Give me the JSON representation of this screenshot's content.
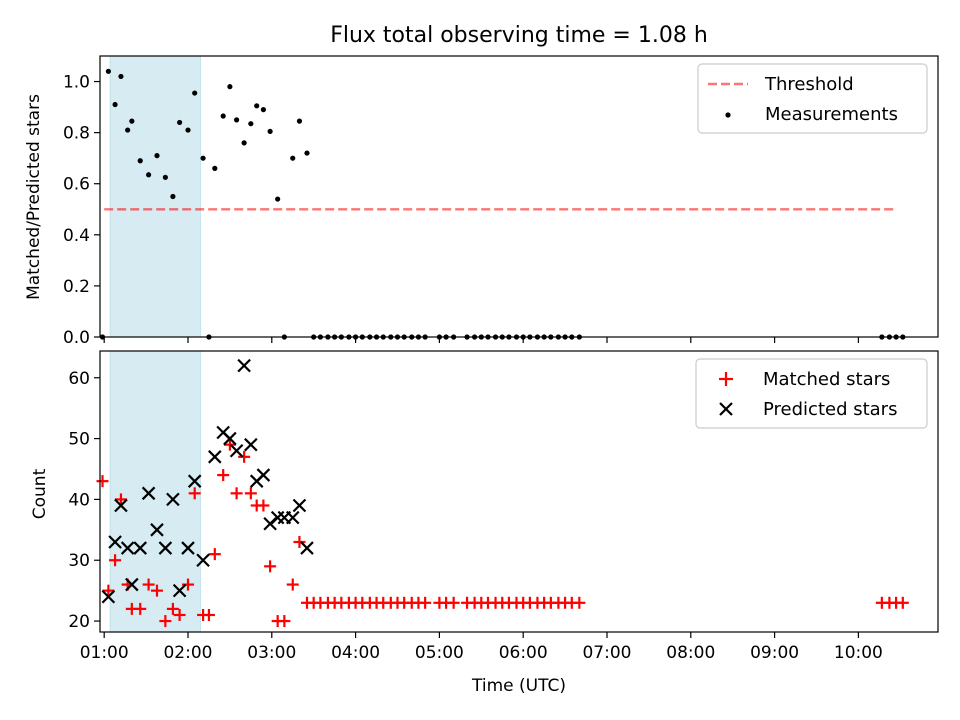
{
  "figure": {
    "title": "Flux total observing time = 1.08 h"
  },
  "chart_data": [
    {
      "type": "scatter",
      "panel": "top",
      "title": "Flux total observing time = 1.08 h",
      "xlabel": "",
      "ylabel": "Matched/Predicted stars",
      "xlim": [
        0.95,
        10.95
      ],
      "ylim": [
        0.0,
        1.1
      ],
      "yticks": [
        0.0,
        0.2,
        0.4,
        0.6,
        0.8,
        1.0
      ],
      "ytick_labels": [
        "0.0",
        "0.2",
        "0.4",
        "0.6",
        "0.8",
        "1.0"
      ],
      "xticks": [
        1,
        2,
        3,
        4,
        5,
        6,
        7,
        8,
        9,
        10
      ],
      "legend": {
        "location": "upper right",
        "entries": [
          "Threshold",
          "Measurements"
        ]
      },
      "shaded_span": {
        "x_start": 1.07,
        "x_end": 2.15,
        "color": "#add8e6"
      },
      "threshold": {
        "name": "Threshold",
        "y": 0.5,
        "x_start": 1.0,
        "x_end": 10.45,
        "color": "#ff0000",
        "style": "dashed"
      },
      "series": [
        {
          "name": "Measurements",
          "color": "#000000",
          "marker": "dot",
          "points": [
            [
              0.98,
              0.0
            ],
            [
              1.05,
              1.04
            ],
            [
              1.13,
              0.91
            ],
            [
              1.2,
              1.02
            ],
            [
              1.28,
              0.81
            ],
            [
              1.33,
              0.845
            ],
            [
              1.43,
              0.69
            ],
            [
              1.53,
              0.635
            ],
            [
              1.63,
              0.71
            ],
            [
              1.73,
              0.625
            ],
            [
              1.82,
              0.55
            ],
            [
              1.9,
              0.84
            ],
            [
              2.0,
              0.81
            ],
            [
              2.08,
              0.955
            ],
            [
              2.18,
              0.7
            ],
            [
              2.25,
              0.0
            ],
            [
              2.32,
              0.66
            ],
            [
              2.42,
              0.865
            ],
            [
              2.5,
              0.98
            ],
            [
              2.58,
              0.85
            ],
            [
              2.67,
              0.76
            ],
            [
              2.75,
              0.835
            ],
            [
              2.82,
              0.905
            ],
            [
              2.9,
              0.89
            ],
            [
              2.98,
              0.805
            ],
            [
              3.07,
              0.54
            ],
            [
              3.15,
              0.0
            ],
            [
              3.25,
              0.7
            ],
            [
              3.33,
              0.845
            ],
            [
              3.42,
              0.72
            ],
            [
              3.5,
              0.0
            ],
            [
              3.58,
              0.0
            ],
            [
              3.67,
              0.0
            ],
            [
              3.75,
              0.0
            ],
            [
              3.83,
              0.0
            ],
            [
              3.92,
              0.0
            ],
            [
              4.0,
              0.0
            ],
            [
              4.08,
              0.0
            ],
            [
              4.17,
              0.0
            ],
            [
              4.25,
              0.0
            ],
            [
              4.33,
              0.0
            ],
            [
              4.42,
              0.0
            ],
            [
              4.5,
              0.0
            ],
            [
              4.58,
              0.0
            ],
            [
              4.67,
              0.0
            ],
            [
              4.75,
              0.0
            ],
            [
              4.83,
              0.0
            ],
            [
              5.0,
              0.0
            ],
            [
              5.08,
              0.0
            ],
            [
              5.17,
              0.0
            ],
            [
              5.33,
              0.0
            ],
            [
              5.42,
              0.0
            ],
            [
              5.5,
              0.0
            ],
            [
              5.58,
              0.0
            ],
            [
              5.67,
              0.0
            ],
            [
              5.75,
              0.0
            ],
            [
              5.83,
              0.0
            ],
            [
              5.92,
              0.0
            ],
            [
              6.0,
              0.0
            ],
            [
              6.08,
              0.0
            ],
            [
              6.17,
              0.0
            ],
            [
              6.25,
              0.0
            ],
            [
              6.33,
              0.0
            ],
            [
              6.42,
              0.0
            ],
            [
              6.5,
              0.0
            ],
            [
              6.58,
              0.0
            ],
            [
              6.67,
              0.0
            ],
            [
              10.28,
              0.0
            ],
            [
              10.37,
              0.0
            ],
            [
              10.45,
              0.0
            ],
            [
              10.53,
              0.0
            ]
          ]
        }
      ]
    },
    {
      "type": "scatter",
      "panel": "bottom",
      "title": "",
      "xlabel": "Time (UTC)",
      "ylabel": "Count",
      "xlim": [
        0.95,
        10.95
      ],
      "ylim": [
        18.2,
        64.4
      ],
      "yticks": [
        20,
        30,
        40,
        50,
        60
      ],
      "ytick_labels": [
        "20",
        "30",
        "40",
        "50",
        "60"
      ],
      "xticks": [
        1,
        2,
        3,
        4,
        5,
        6,
        7,
        8,
        9,
        10
      ],
      "xtick_labels": [
        "01:00",
        "02:00",
        "03:00",
        "04:00",
        "05:00",
        "06:00",
        "07:00",
        "08:00",
        "09:00",
        "10:00"
      ],
      "legend": {
        "location": "upper right",
        "entries": [
          "Matched stars",
          "Predicted stars"
        ]
      },
      "shaded_span": {
        "x_start": 1.07,
        "x_end": 2.15,
        "color": "#add8e6"
      },
      "series": [
        {
          "name": "Matched stars",
          "color": "#ff0000",
          "marker": "plus",
          "points": [
            [
              0.98,
              43
            ],
            [
              1.05,
              25
            ],
            [
              1.13,
              30
            ],
            [
              1.2,
              40
            ],
            [
              1.28,
              26
            ],
            [
              1.33,
              22
            ],
            [
              1.43,
              22
            ],
            [
              1.53,
              26
            ],
            [
              1.63,
              25
            ],
            [
              1.73,
              20
            ],
            [
              1.82,
              22
            ],
            [
              1.9,
              21
            ],
            [
              2.0,
              26
            ],
            [
              2.08,
              41
            ],
            [
              2.18,
              21
            ],
            [
              2.25,
              21
            ],
            [
              2.32,
              31
            ],
            [
              2.42,
              44
            ],
            [
              2.5,
              49
            ],
            [
              2.58,
              41
            ],
            [
              2.67,
              47
            ],
            [
              2.75,
              41
            ],
            [
              2.82,
              39
            ],
            [
              2.9,
              39
            ],
            [
              2.98,
              29
            ],
            [
              3.07,
              20
            ],
            [
              3.15,
              20
            ],
            [
              3.25,
              26
            ],
            [
              3.33,
              33
            ],
            [
              3.42,
              23
            ],
            [
              3.5,
              23
            ],
            [
              3.58,
              23
            ],
            [
              3.67,
              23
            ],
            [
              3.75,
              23
            ],
            [
              3.83,
              23
            ],
            [
              3.92,
              23
            ],
            [
              4.0,
              23
            ],
            [
              4.08,
              23
            ],
            [
              4.17,
              23
            ],
            [
              4.25,
              23
            ],
            [
              4.33,
              23
            ],
            [
              4.42,
              23
            ],
            [
              4.5,
              23
            ],
            [
              4.58,
              23
            ],
            [
              4.67,
              23
            ],
            [
              4.75,
              23
            ],
            [
              4.83,
              23
            ],
            [
              5.0,
              23
            ],
            [
              5.08,
              23
            ],
            [
              5.17,
              23
            ],
            [
              5.33,
              23
            ],
            [
              5.42,
              23
            ],
            [
              5.5,
              23
            ],
            [
              5.58,
              23
            ],
            [
              5.67,
              23
            ],
            [
              5.75,
              23
            ],
            [
              5.83,
              23
            ],
            [
              5.92,
              23
            ],
            [
              6.0,
              23
            ],
            [
              6.08,
              23
            ],
            [
              6.17,
              23
            ],
            [
              6.25,
              23
            ],
            [
              6.33,
              23
            ],
            [
              6.42,
              23
            ],
            [
              6.5,
              23
            ],
            [
              6.58,
              23
            ],
            [
              6.67,
              23
            ],
            [
              10.28,
              23
            ],
            [
              10.37,
              23
            ],
            [
              10.45,
              23
            ],
            [
              10.53,
              23
            ]
          ]
        },
        {
          "name": "Predicted stars",
          "color": "#000000",
          "marker": "x",
          "points": [
            [
              1.05,
              24
            ],
            [
              1.13,
              33
            ],
            [
              1.2,
              39
            ],
            [
              1.28,
              32
            ],
            [
              1.33,
              26
            ],
            [
              1.43,
              32
            ],
            [
              1.53,
              41
            ],
            [
              1.63,
              35
            ],
            [
              1.73,
              32
            ],
            [
              1.82,
              40
            ],
            [
              1.9,
              25
            ],
            [
              2.0,
              32
            ],
            [
              2.08,
              43
            ],
            [
              2.18,
              30
            ],
            [
              2.32,
              47
            ],
            [
              2.42,
              51
            ],
            [
              2.5,
              50
            ],
            [
              2.58,
              48
            ],
            [
              2.67,
              62
            ],
            [
              2.75,
              49
            ],
            [
              2.82,
              43
            ],
            [
              2.9,
              44
            ],
            [
              2.98,
              36
            ],
            [
              3.07,
              37
            ],
            [
              3.15,
              37
            ],
            [
              3.25,
              37
            ],
            [
              3.33,
              39
            ],
            [
              3.42,
              32
            ]
          ]
        }
      ]
    }
  ]
}
